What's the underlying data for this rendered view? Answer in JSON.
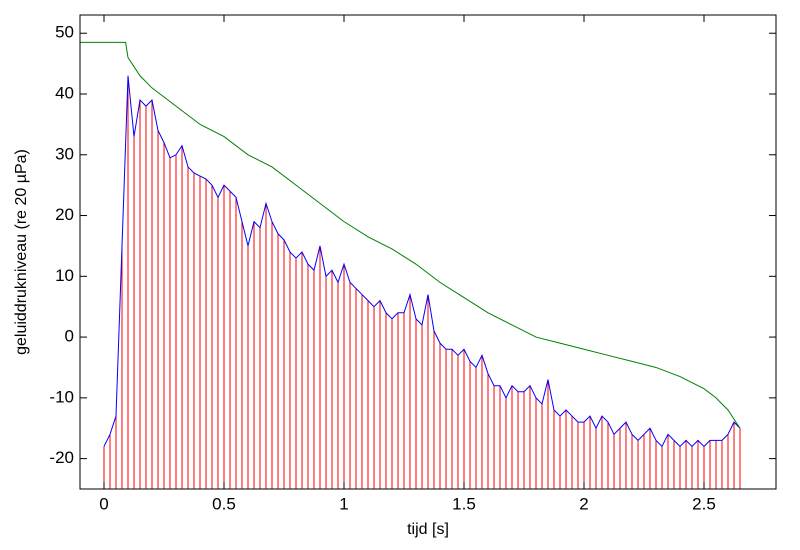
{
  "chart_data": {
    "type": "line",
    "xlabel": "tijd  [s]",
    "ylabel": "geluiddrukniveau (re 20 µPa)",
    "xlim": [
      -0.1,
      2.8
    ],
    "ylim": [
      -25,
      53
    ],
    "xticks": [
      0,
      0.5,
      1,
      1.5,
      2,
      2.5
    ],
    "yticks": [
      -20,
      -10,
      0,
      10,
      20,
      30,
      40,
      50
    ],
    "stem_color": "#ff0000",
    "series": [
      {
        "color": "#0000ff",
        "stems": true,
        "x": [
          0,
          0.025,
          0.05,
          0.075,
          0.1,
          0.125,
          0.15,
          0.175,
          0.2,
          0.225,
          0.25,
          0.275,
          0.3,
          0.325,
          0.35,
          0.375,
          0.4,
          0.425,
          0.45,
          0.475,
          0.5,
          0.525,
          0.55,
          0.575,
          0.6,
          0.625,
          0.65,
          0.675,
          0.7,
          0.725,
          0.75,
          0.775,
          0.8,
          0.825,
          0.85,
          0.875,
          0.9,
          0.925,
          0.95,
          0.975,
          1.0,
          1.025,
          1.05,
          1.075,
          1.1,
          1.125,
          1.15,
          1.175,
          1.2,
          1.225,
          1.25,
          1.275,
          1.3,
          1.325,
          1.35,
          1.375,
          1.4,
          1.425,
          1.45,
          1.475,
          1.5,
          1.525,
          1.55,
          1.575,
          1.6,
          1.625,
          1.65,
          1.675,
          1.7,
          1.725,
          1.75,
          1.775,
          1.8,
          1.825,
          1.85,
          1.875,
          1.9,
          1.925,
          1.95,
          1.975,
          2.0,
          2.025,
          2.05,
          2.075,
          2.1,
          2.125,
          2.15,
          2.175,
          2.2,
          2.225,
          2.25,
          2.275,
          2.3,
          2.325,
          2.35,
          2.375,
          2.4,
          2.425,
          2.45,
          2.475,
          2.5,
          2.525,
          2.55,
          2.575,
          2.6,
          2.625,
          2.65
        ],
        "values": [
          -18,
          -16,
          -13,
          15,
          43,
          33,
          39,
          38,
          39,
          34,
          32,
          29.5,
          30,
          31.5,
          28,
          27,
          26.5,
          26,
          25,
          23,
          25,
          24,
          23,
          19,
          15,
          19,
          18,
          22,
          19,
          17,
          16,
          14,
          13,
          14,
          12,
          11,
          15,
          10,
          11,
          9,
          12,
          9,
          8,
          7,
          6,
          5,
          6,
          4,
          3,
          4,
          4,
          7,
          3,
          2,
          7,
          1,
          -1,
          -2,
          -2,
          -3,
          -2,
          -4,
          -5,
          -3,
          -6,
          -8,
          -8,
          -10,
          -8,
          -9,
          -9,
          -8,
          -10,
          -11,
          -7,
          -12,
          -13,
          -12,
          -13,
          -14,
          -14,
          -13,
          -15,
          -13,
          -14,
          -16,
          -15,
          -14,
          -16,
          -17,
          -16,
          -15,
          -17,
          -18,
          -16,
          -17,
          -18,
          -17,
          -18,
          -17,
          -18,
          -17,
          -17,
          -17,
          -16,
          -14,
          -15
        ]
      },
      {
        "color": "#008000",
        "x": [
          -0.1,
          0.09,
          0.1,
          0.15,
          0.2,
          0.3,
          0.4,
          0.5,
          0.6,
          0.7,
          0.8,
          0.9,
          1.0,
          1.1,
          1.2,
          1.3,
          1.4,
          1.5,
          1.6,
          1.7,
          1.8,
          1.9,
          2.0,
          2.1,
          2.2,
          2.3,
          2.4,
          2.5,
          2.55,
          2.6,
          2.65
        ],
        "values": [
          48.5,
          48.5,
          46,
          43,
          41,
          38,
          35,
          33,
          30,
          28,
          25,
          22,
          19,
          16.5,
          14.5,
          12,
          9,
          6.5,
          4,
          2,
          0,
          -1,
          -2,
          -3,
          -4,
          -5,
          -6.5,
          -8.5,
          -10,
          -12,
          -15
        ]
      }
    ]
  }
}
